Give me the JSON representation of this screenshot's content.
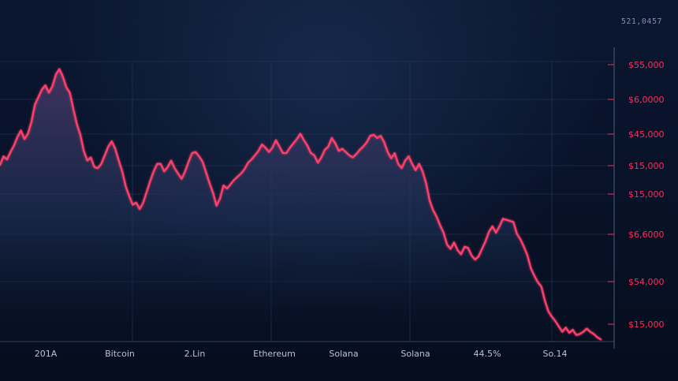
{
  "header": {
    "readout": "521,0457"
  },
  "chart_data": {
    "type": "area",
    "title": "",
    "xlabel": "",
    "ylabel": "",
    "grid": true,
    "legend": "none",
    "colors": {
      "line": "#ff3f6b",
      "fill_top": "#4b3a68",
      "fill_bottom": "#08132a",
      "grid": "#28415e",
      "tick_text": "#ff2f57",
      "axis_text": "#b8c2d8"
    },
    "x_tick_labels": [
      "201A",
      "Bitcoin",
      "2.Lin",
      "Ethereum",
      "Solana",
      "Solana",
      "44.5%",
      "So.14"
    ],
    "y_tick_labels": [
      "$55,000",
      "$6,0000",
      "$45,000",
      "$15,000",
      "$15,000",
      "$6,6000",
      "$54,000",
      "$15,000"
    ],
    "series": [
      {
        "values": [
          82.0,
          86.0,
          84.5,
          88.0,
          91.0,
          95.0,
          98.0,
          94.0,
          96.5,
          102.0,
          110.0,
          113.5,
          117.0,
          119.0,
          115.5,
          118.5,
          124.0,
          126.5,
          123.0,
          118.0,
          115.5,
          108.0,
          101.0,
          96.0,
          88.5,
          84.0,
          85.5,
          81.0,
          80.5,
          82.5,
          86.5,
          90.5,
          93.0,
          89.5,
          84.0,
          79.0,
          72.0,
          67.5,
          63.5,
          64.5,
          61.5,
          64.5,
          69.5,
          74.5,
          79.0,
          82.5,
          82.5,
          79.0,
          81.0,
          84.0,
          80.5,
          78.0,
          75.5,
          79.0,
          83.5,
          87.5,
          88.0,
          86.0,
          83.5,
          78.5,
          73.5,
          69.0,
          63.0,
          66.5,
          72.5,
          71.0,
          73.0,
          75.0,
          76.5,
          78.0,
          80.0,
          83.0,
          84.5,
          86.5,
          88.5,
          91.5,
          90.0,
          88.0,
          90.0,
          93.5,
          90.5,
          87.5,
          87.5,
          90.0,
          92.0,
          94.0,
          96.5,
          93.5,
          91.0,
          87.5,
          86.5,
          83.0,
          85.5,
          89.0,
          90.5,
          94.5,
          92.0,
          88.5,
          89.5,
          88.0,
          86.5,
          85.5,
          87.0,
          89.0,
          90.5,
          92.5,
          95.5,
          96.0,
          94.5,
          95.5,
          92.5,
          88.0,
          85.0,
          87.5,
          82.5,
          80.5,
          84.0,
          86.0,
          82.5,
          79.5,
          82.5,
          79.0,
          73.5,
          65.5,
          61.0,
          58.0,
          54.0,
          50.5,
          45.0,
          43.0,
          46.0,
          42.5,
          40.5,
          44.0,
          43.5,
          40.0,
          38.0,
          39.5,
          43.0,
          46.5,
          51.0,
          53.5,
          50.5,
          53.5,
          57.0,
          56.5,
          56.0,
          55.5,
          50.0,
          47.5,
          44.0,
          40.0,
          34.0,
          30.5,
          27.5,
          25.5,
          19.0,
          14.0,
          11.5,
          9.5,
          7.0,
          4.5,
          6.5,
          4.0,
          5.5,
          3.0,
          3.5,
          4.5,
          6.0,
          4.5,
          3.5,
          2.0,
          1.0
        ]
      }
    ],
    "y_range": [
      0,
      130
    ]
  }
}
